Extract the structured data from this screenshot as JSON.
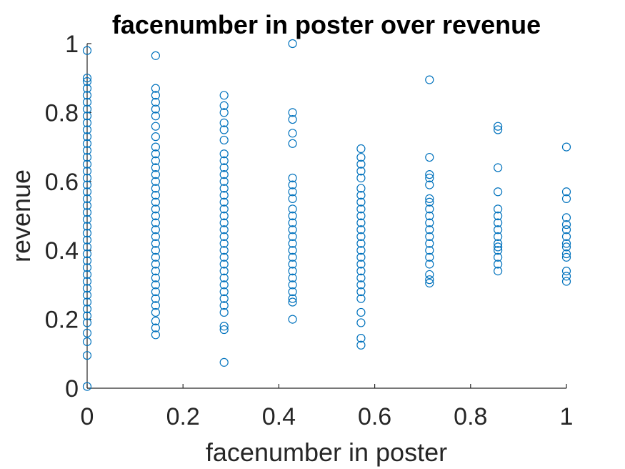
{
  "chart_data": {
    "type": "scatter",
    "title": "facenumber in poster over revenue",
    "xlabel": "facenumber in poster",
    "ylabel": "revenue",
    "xlim": [
      0,
      1
    ],
    "ylim": [
      0,
      1
    ],
    "xticks": [
      "0",
      "0.2",
      "0.4",
      "0.6",
      "0.8",
      "1"
    ],
    "yticks": [
      "0",
      "0.2",
      "0.4",
      "0.6",
      "0.8",
      "1"
    ],
    "grid": false,
    "marker": "circle",
    "color": "#0072BD",
    "series": [
      {
        "points": [
          [
            0,
            0.005
          ],
          [
            0,
            0.095
          ],
          [
            0,
            0.135
          ],
          [
            0,
            0.16
          ],
          [
            0,
            0.19
          ],
          [
            0,
            0.21
          ],
          [
            0,
            0.23
          ],
          [
            0,
            0.25
          ],
          [
            0,
            0.27
          ],
          [
            0,
            0.29
          ],
          [
            0,
            0.31
          ],
          [
            0,
            0.33
          ],
          [
            0,
            0.35
          ],
          [
            0,
            0.37
          ],
          [
            0,
            0.39
          ],
          [
            0,
            0.41
          ],
          [
            0,
            0.43
          ],
          [
            0,
            0.45
          ],
          [
            0,
            0.47
          ],
          [
            0,
            0.49
          ],
          [
            0,
            0.51
          ],
          [
            0,
            0.53
          ],
          [
            0,
            0.55
          ],
          [
            0,
            0.57
          ],
          [
            0,
            0.59
          ],
          [
            0,
            0.61
          ],
          [
            0,
            0.63
          ],
          [
            0,
            0.65
          ],
          [
            0,
            0.67
          ],
          [
            0,
            0.69
          ],
          [
            0,
            0.71
          ],
          [
            0,
            0.73
          ],
          [
            0,
            0.75
          ],
          [
            0,
            0.77
          ],
          [
            0,
            0.79
          ],
          [
            0,
            0.81
          ],
          [
            0,
            0.83
          ],
          [
            0,
            0.85
          ],
          [
            0,
            0.87
          ],
          [
            0,
            0.89
          ],
          [
            0,
            0.9
          ],
          [
            0,
            0.98
          ],
          [
            0.1429,
            0.155
          ],
          [
            0.1429,
            0.175
          ],
          [
            0.1429,
            0.195
          ],
          [
            0.1429,
            0.22
          ],
          [
            0.1429,
            0.24
          ],
          [
            0.1429,
            0.26
          ],
          [
            0.1429,
            0.28
          ],
          [
            0.1429,
            0.3
          ],
          [
            0.1429,
            0.32
          ],
          [
            0.1429,
            0.34
          ],
          [
            0.1429,
            0.36
          ],
          [
            0.1429,
            0.38
          ],
          [
            0.1429,
            0.4
          ],
          [
            0.1429,
            0.42
          ],
          [
            0.1429,
            0.44
          ],
          [
            0.1429,
            0.46
          ],
          [
            0.1429,
            0.48
          ],
          [
            0.1429,
            0.5
          ],
          [
            0.1429,
            0.52
          ],
          [
            0.1429,
            0.54
          ],
          [
            0.1429,
            0.56
          ],
          [
            0.1429,
            0.58
          ],
          [
            0.1429,
            0.6
          ],
          [
            0.1429,
            0.62
          ],
          [
            0.1429,
            0.64
          ],
          [
            0.1429,
            0.66
          ],
          [
            0.1429,
            0.68
          ],
          [
            0.1429,
            0.7
          ],
          [
            0.1429,
            0.73
          ],
          [
            0.1429,
            0.76
          ],
          [
            0.1429,
            0.79
          ],
          [
            0.1429,
            0.81
          ],
          [
            0.1429,
            0.83
          ],
          [
            0.1429,
            0.85
          ],
          [
            0.1429,
            0.87
          ],
          [
            0.1429,
            0.965
          ],
          [
            0.2857,
            0.075
          ],
          [
            0.2857,
            0.17
          ],
          [
            0.2857,
            0.18
          ],
          [
            0.2857,
            0.22
          ],
          [
            0.2857,
            0.24
          ],
          [
            0.2857,
            0.26
          ],
          [
            0.2857,
            0.28
          ],
          [
            0.2857,
            0.3
          ],
          [
            0.2857,
            0.32
          ],
          [
            0.2857,
            0.34
          ],
          [
            0.2857,
            0.36
          ],
          [
            0.2857,
            0.38
          ],
          [
            0.2857,
            0.4
          ],
          [
            0.2857,
            0.42
          ],
          [
            0.2857,
            0.44
          ],
          [
            0.2857,
            0.46
          ],
          [
            0.2857,
            0.48
          ],
          [
            0.2857,
            0.5
          ],
          [
            0.2857,
            0.52
          ],
          [
            0.2857,
            0.54
          ],
          [
            0.2857,
            0.56
          ],
          [
            0.2857,
            0.58
          ],
          [
            0.2857,
            0.6
          ],
          [
            0.2857,
            0.62
          ],
          [
            0.2857,
            0.64
          ],
          [
            0.2857,
            0.66
          ],
          [
            0.2857,
            0.68
          ],
          [
            0.2857,
            0.72
          ],
          [
            0.2857,
            0.75
          ],
          [
            0.2857,
            0.77
          ],
          [
            0.2857,
            0.8
          ],
          [
            0.2857,
            0.82
          ],
          [
            0.2857,
            0.85
          ],
          [
            0.4286,
            0.2
          ],
          [
            0.4286,
            0.25
          ],
          [
            0.4286,
            0.26
          ],
          [
            0.4286,
            0.28
          ],
          [
            0.4286,
            0.3
          ],
          [
            0.4286,
            0.32
          ],
          [
            0.4286,
            0.34
          ],
          [
            0.4286,
            0.36
          ],
          [
            0.4286,
            0.38
          ],
          [
            0.4286,
            0.4
          ],
          [
            0.4286,
            0.42
          ],
          [
            0.4286,
            0.44
          ],
          [
            0.4286,
            0.46
          ],
          [
            0.4286,
            0.48
          ],
          [
            0.4286,
            0.5
          ],
          [
            0.4286,
            0.52
          ],
          [
            0.4286,
            0.55
          ],
          [
            0.4286,
            0.57
          ],
          [
            0.4286,
            0.59
          ],
          [
            0.4286,
            0.61
          ],
          [
            0.4286,
            0.71
          ],
          [
            0.4286,
            0.74
          ],
          [
            0.4286,
            0.78
          ],
          [
            0.4286,
            0.8
          ],
          [
            0.4286,
            1.0
          ],
          [
            0.5714,
            0.125
          ],
          [
            0.5714,
            0.145
          ],
          [
            0.5714,
            0.19
          ],
          [
            0.5714,
            0.22
          ],
          [
            0.5714,
            0.26
          ],
          [
            0.5714,
            0.28
          ],
          [
            0.5714,
            0.3
          ],
          [
            0.5714,
            0.32
          ],
          [
            0.5714,
            0.34
          ],
          [
            0.5714,
            0.36
          ],
          [
            0.5714,
            0.38
          ],
          [
            0.5714,
            0.4
          ],
          [
            0.5714,
            0.42
          ],
          [
            0.5714,
            0.44
          ],
          [
            0.5714,
            0.46
          ],
          [
            0.5714,
            0.48
          ],
          [
            0.5714,
            0.5
          ],
          [
            0.5714,
            0.52
          ],
          [
            0.5714,
            0.54
          ],
          [
            0.5714,
            0.56
          ],
          [
            0.5714,
            0.58
          ],
          [
            0.5714,
            0.61
          ],
          [
            0.5714,
            0.63
          ],
          [
            0.5714,
            0.65
          ],
          [
            0.5714,
            0.67
          ],
          [
            0.5714,
            0.695
          ],
          [
            0.7143,
            0.305
          ],
          [
            0.7143,
            0.315
          ],
          [
            0.7143,
            0.33
          ],
          [
            0.7143,
            0.36
          ],
          [
            0.7143,
            0.38
          ],
          [
            0.7143,
            0.4
          ],
          [
            0.7143,
            0.42
          ],
          [
            0.7143,
            0.44
          ],
          [
            0.7143,
            0.46
          ],
          [
            0.7143,
            0.48
          ],
          [
            0.7143,
            0.5
          ],
          [
            0.7143,
            0.52
          ],
          [
            0.7143,
            0.54
          ],
          [
            0.7143,
            0.55
          ],
          [
            0.7143,
            0.59
          ],
          [
            0.7143,
            0.61
          ],
          [
            0.7143,
            0.62
          ],
          [
            0.7143,
            0.67
          ],
          [
            0.7143,
            0.895
          ],
          [
            0.8571,
            0.34
          ],
          [
            0.8571,
            0.36
          ],
          [
            0.8571,
            0.38
          ],
          [
            0.8571,
            0.4
          ],
          [
            0.8571,
            0.41
          ],
          [
            0.8571,
            0.42
          ],
          [
            0.8571,
            0.44
          ],
          [
            0.8571,
            0.46
          ],
          [
            0.8571,
            0.48
          ],
          [
            0.8571,
            0.5
          ],
          [
            0.8571,
            0.52
          ],
          [
            0.8571,
            0.57
          ],
          [
            0.8571,
            0.64
          ],
          [
            0.8571,
            0.75
          ],
          [
            0.8571,
            0.76
          ],
          [
            1,
            0.31
          ],
          [
            1,
            0.325
          ],
          [
            1,
            0.34
          ],
          [
            1,
            0.38
          ],
          [
            1,
            0.39
          ],
          [
            1,
            0.41
          ],
          [
            1,
            0.42
          ],
          [
            1,
            0.44
          ],
          [
            1,
            0.46
          ],
          [
            1,
            0.475
          ],
          [
            1,
            0.495
          ],
          [
            1,
            0.55
          ],
          [
            1,
            0.57
          ],
          [
            1,
            0.7
          ]
        ]
      }
    ]
  }
}
